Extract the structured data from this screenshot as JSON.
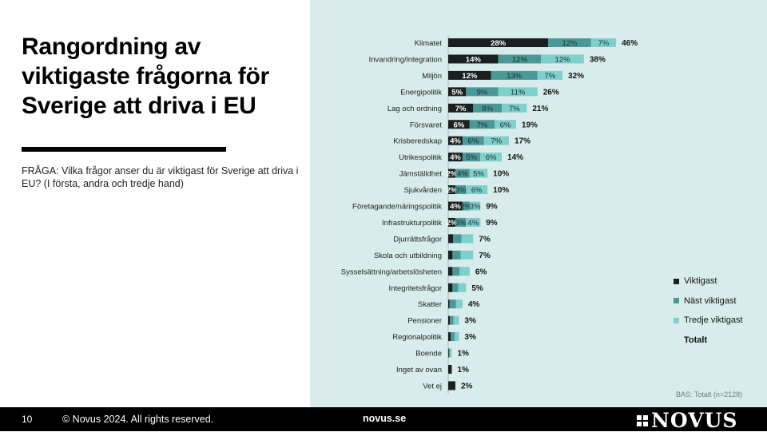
{
  "slide": {
    "title": "Rangordning av viktigaste frågorna för Sverige att driva i EU",
    "question": "FRÅGA: Vilka frågor anser du är viktigast för Sverige att driva i EU?  (I första, andra och tredje hand)",
    "base_note": "BAS: Totalt (n=2128)"
  },
  "footer": {
    "page_number": "10",
    "copyright": "© Novus 2024. All rights reserved.",
    "website": "novus.se",
    "logo_text": "NOVUS"
  },
  "colors": {
    "panel_bg": "#d8eceb",
    "viktigast": "#1a1f1f",
    "nast_viktigast": "#4a9897",
    "tredje_viktigast": "#7fcfcc"
  },
  "chart_data": {
    "type": "bar",
    "orientation": "horizontal",
    "stacked": true,
    "xlim": [
      0,
      50
    ],
    "grid": false,
    "legend_position": "right",
    "categories": [
      "Klimatet",
      "Invandring/integration",
      "Miljön",
      "Energipolitik",
      "Lag och ordning",
      "Försvaret",
      "Krisberedskap",
      "Utrikespolitik",
      "Jämställdhet",
      "Sjukvården",
      "Företagande/näringspolitik",
      "Infrastrukturpolitik",
      "Djurrättsfrågor",
      "Skola och utbildning",
      "Sysselsättning/arbetslösheten",
      "Integritetsfrågor",
      "Skatter",
      "Pensioner",
      "Regionalpolitik",
      "Boende",
      "Inget av ovan",
      "Vet ej"
    ],
    "series": [
      {
        "name": "Viktigast",
        "color": "#1a1f1f",
        "values": [
          28,
          14,
          12,
          5,
          7,
          6,
          4,
          4,
          2,
          2,
          4,
          2,
          1.4,
          1.2,
          1.2,
          1.2,
          0.4,
          0.5,
          0.7,
          0.2,
          1,
          2
        ],
        "labels": [
          "28%",
          "14%",
          "12%",
          "5%",
          "7%",
          "6%",
          "4%",
          "4%",
          "2%",
          "2%",
          "4%",
          "2%",
          "",
          "",
          "",
          "",
          "",
          "",
          "",
          "",
          "",
          ""
        ]
      },
      {
        "name": "Näst viktigast",
        "color": "#4a9897",
        "values": [
          12,
          12,
          13,
          9,
          8,
          7,
          6,
          5,
          4,
          3,
          2,
          3,
          2.3,
          2.3,
          2,
          1.6,
          1.8,
          1,
          1.1,
          0.3,
          0,
          0
        ],
        "labels": [
          "12%",
          "12%",
          "13%",
          "9%",
          "8%",
          "7%",
          "6%",
          "5%",
          "4%",
          "3%",
          "2%",
          "3%",
          "",
          "",
          "",
          "",
          "",
          "",
          "",
          "",
          "",
          ""
        ]
      },
      {
        "name": "Tredje viktigast",
        "color": "#7fcfcc",
        "values": [
          7,
          12,
          7,
          11,
          7,
          6,
          7,
          6,
          5,
          6,
          3,
          4,
          3.3,
          3.5,
          2.8,
          2.2,
          1.8,
          1.5,
          1.2,
          0.5,
          0,
          0
        ],
        "labels": [
          "7%",
          "12%",
          "7%",
          "11%",
          "7%",
          "6%",
          "7%",
          "6%",
          "5%",
          "6%",
          "3%",
          "4%",
          "",
          "",
          "",
          "",
          "",
          "",
          "",
          "",
          "",
          ""
        ]
      }
    ],
    "total_label": "Totalt",
    "totals": [
      "46%",
      "38%",
      "32%",
      "26%",
      "21%",
      "19%",
      "17%",
      "14%",
      "10%",
      "10%",
      "9%",
      "9%",
      "7%",
      "7%",
      "6%",
      "5%",
      "4%",
      "3%",
      "3%",
      "1%",
      "1%",
      "2%"
    ]
  }
}
